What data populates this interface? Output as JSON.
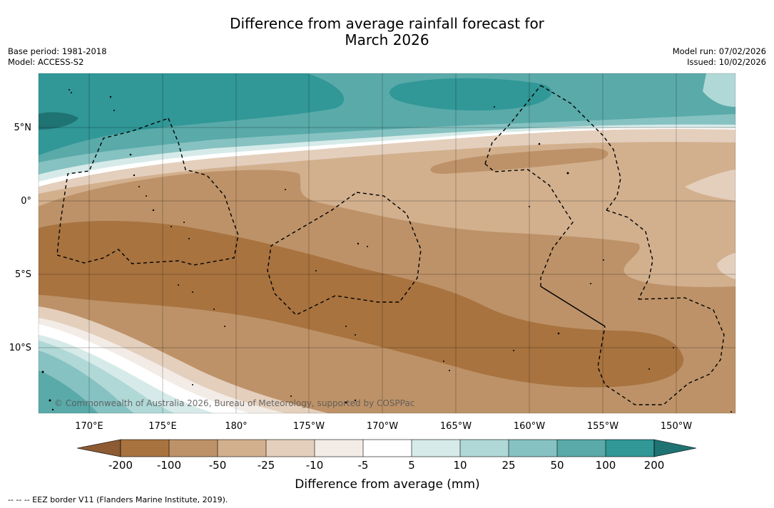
{
  "title": {
    "line1": "Difference from average rainfall forecast for",
    "line2": "March 2026"
  },
  "meta_left": {
    "base_period": "Base period: 1981-2018",
    "model": "Model: ACCESS-S2"
  },
  "meta_right": {
    "model_run": "Model run: 07/02/2026",
    "issued": "Issued: 10/02/2026"
  },
  "map": {
    "lat_labels": [
      "5°N",
      "0°",
      "5°S",
      "10°S"
    ],
    "lon_labels": [
      "170°E",
      "175°E",
      "180°",
      "175°W",
      "170°W",
      "165°W",
      "160°W",
      "155°W",
      "150°W"
    ],
    "copyright": "© Commonwealth of Australia 2026, Bureau of Meteorology, supported by COSPPac"
  },
  "colorbar": {
    "title": "Difference from average (mm)",
    "tick_labels": [
      "-200",
      "-100",
      "-50",
      "-25",
      "-10",
      "-5",
      "5",
      "10",
      "25",
      "50",
      "100",
      "200"
    ],
    "colors": {
      "below_200": "#8c5a33",
      "m200_m100": "#a8733f",
      "m100_m50": "#bd9268",
      "m50_m25": "#d2b08e",
      "m25_m10": "#e4cfbd",
      "m10_m5": "#f3ece6",
      "m5_p5": "#ffffff",
      "p5_p10": "#d6ebe9",
      "p10_p25": "#afd8d6",
      "p25_p50": "#86c2c1",
      "p50_p100": "#59aaa9",
      "p100_p200": "#319797",
      "above_200": "#1f7373"
    }
  },
  "footer": {
    "legend": "--  --  -- EEZ border V11 (Flanders Marine Institute, 2019)."
  }
}
